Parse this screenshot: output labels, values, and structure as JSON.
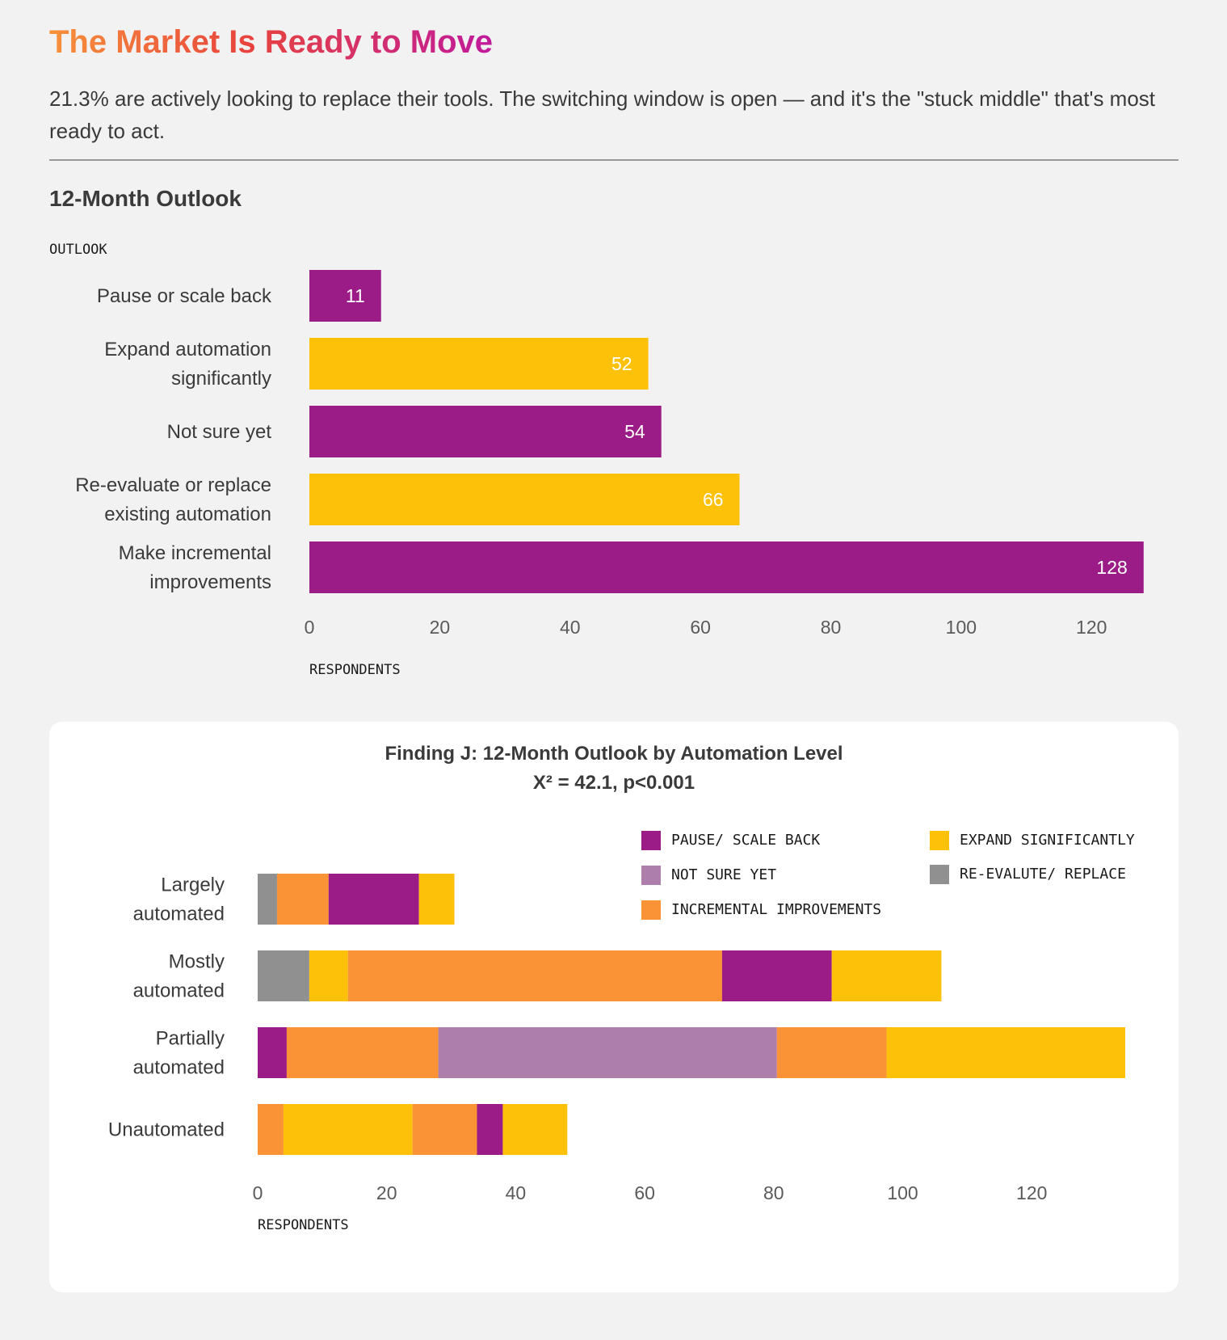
{
  "page": {
    "headline": "The Market Is Ready to Move",
    "subtitle": "21.3% are actively looking to replace their tools. The switching window is open — and it's the \"stuck middle\" that's most ready to act.",
    "section_title": "12-Month Outlook"
  },
  "chart_data": [
    {
      "type": "bar",
      "orientation": "horizontal",
      "title": "12-Month Outlook",
      "category_axis_label": "OUTLOOK",
      "value_axis_label": "RESPONDENTS",
      "categories": [
        "Pause or scale back",
        "Expand automation significantly",
        "Not sure yet",
        "Re-evaluate or replace existing automation",
        "Make incremental improvements"
      ],
      "category_label_lines": [
        [
          "Pause or scale back"
        ],
        [
          "Expand automation",
          "significantly"
        ],
        [
          "Not sure yet"
        ],
        [
          "Re-evaluate or replace",
          "existing automation"
        ],
        [
          "Make incremental",
          "improvements"
        ]
      ],
      "values": [
        11,
        52,
        54,
        66,
        128
      ],
      "bar_colors": [
        "#9b1c87",
        "#fdc10a",
        "#9b1c87",
        "#fdc10a",
        "#9b1c87"
      ],
      "data_labels": [
        "11",
        "52",
        "54",
        "66",
        "128"
      ],
      "xlim": [
        0,
        131
      ],
      "xticks": [
        0,
        20,
        40,
        60,
        80,
        100,
        120
      ],
      "grid": false
    },
    {
      "type": "bar",
      "orientation": "horizontal",
      "stacked": true,
      "title": "Finding J: 12-Month Outlook by Automation Level",
      "subtitle": "X² = 42.1, p<0.001",
      "value_axis_label": "RESPONDENTS",
      "categories": [
        "Largely automated",
        "Mostly automated",
        "Partially automated",
        "Unautomated"
      ],
      "category_label_lines": [
        [
          "Largely",
          "automated"
        ],
        [
          "Mostly",
          "automated"
        ],
        [
          "Partially",
          "automated"
        ],
        [
          "Unautomated"
        ]
      ],
      "segments": [
        [
          {
            "series": "RE-EVALUTE/ REPLACE",
            "value": 3
          },
          {
            "series": "INCREMENTAL IMPROVEMENTS",
            "value": 8
          },
          {
            "series": "PAUSE/ SCALE BACK",
            "value": 14
          },
          {
            "series": "EXPAND SIGNIFICANTLY",
            "value": 5.5
          }
        ],
        [
          {
            "series": "RE-EVALUTE/ REPLACE",
            "value": 8
          },
          {
            "series": "EXPAND SIGNIFICANTLY",
            "value": 6
          },
          {
            "series": "INCREMENTAL IMPROVEMENTS",
            "value": 58
          },
          {
            "series": "PAUSE/ SCALE BACK",
            "value": 17
          },
          {
            "series": "EXPAND SIGNIFICANTLY",
            "value": 17
          }
        ],
        [
          {
            "series": "PAUSE/ SCALE BACK",
            "value": 4.5
          },
          {
            "series": "INCREMENTAL IMPROVEMENTS",
            "value": 23.5
          },
          {
            "series": "NOT SURE YET",
            "value": 52.5
          },
          {
            "series": "INCREMENTAL IMPROVEMENTS",
            "value": 17
          },
          {
            "series": "EXPAND SIGNIFICANTLY",
            "value": 37
          }
        ],
        [
          {
            "series": "INCREMENTAL IMPROVEMENTS",
            "value": 4
          },
          {
            "series": "EXPAND SIGNIFICANTLY",
            "value": 20
          },
          {
            "series": "INCREMENTAL IMPROVEMENTS",
            "value": 10
          },
          {
            "series": "PAUSE/ SCALE BACK",
            "value": 4
          },
          {
            "series": "EXPAND SIGNIFICANTLY",
            "value": 10
          }
        ]
      ],
      "legend": [
        {
          "name": "PAUSE/ SCALE BACK",
          "color": "#9b1c87"
        },
        {
          "name": "NOT SURE YET",
          "color": "#ad7dab"
        },
        {
          "name": "INCREMENTAL IMPROVEMENTS",
          "color": "#f99335"
        },
        {
          "name": "EXPAND SIGNIFICANTLY",
          "color": "#fdc10a"
        },
        {
          "name": "RE-EVALUTE/ REPLACE",
          "color": "#909090"
        }
      ],
      "legend_position": "top-right",
      "xlim": [
        0,
        135
      ],
      "xticks": [
        0,
        20,
        40,
        60,
        80,
        100,
        120
      ],
      "grid": false
    }
  ]
}
